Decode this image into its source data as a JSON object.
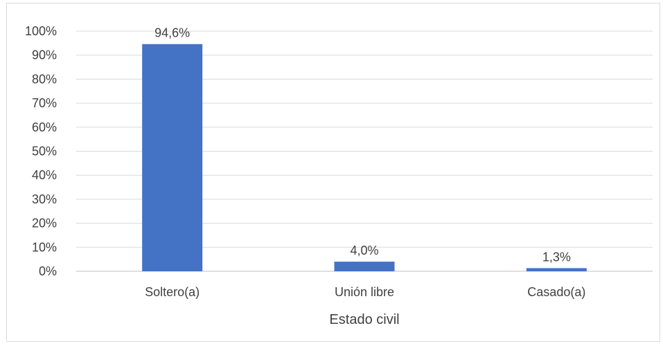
{
  "chart_data": {
    "type": "bar",
    "title": "",
    "xlabel": "Estado civil",
    "ylabel": "",
    "categories": [
      "Soltero(a)",
      "Unión libre",
      "Casado(a)"
    ],
    "values": [
      94.6,
      4.0,
      1.3
    ],
    "data_labels": [
      "94,6%",
      "4,0%",
      "1,3%"
    ],
    "ylim": [
      0,
      100
    ],
    "yticks": [
      0,
      10,
      20,
      30,
      40,
      50,
      60,
      70,
      80,
      90,
      100
    ],
    "ytick_labels": [
      "0%",
      "10%",
      "20%",
      "30%",
      "40%",
      "50%",
      "60%",
      "70%",
      "80%",
      "90%",
      "100%"
    ],
    "grid": true,
    "legend": "none",
    "bar_color": "#4472C4",
    "grid_color": "#d9d9d9"
  }
}
